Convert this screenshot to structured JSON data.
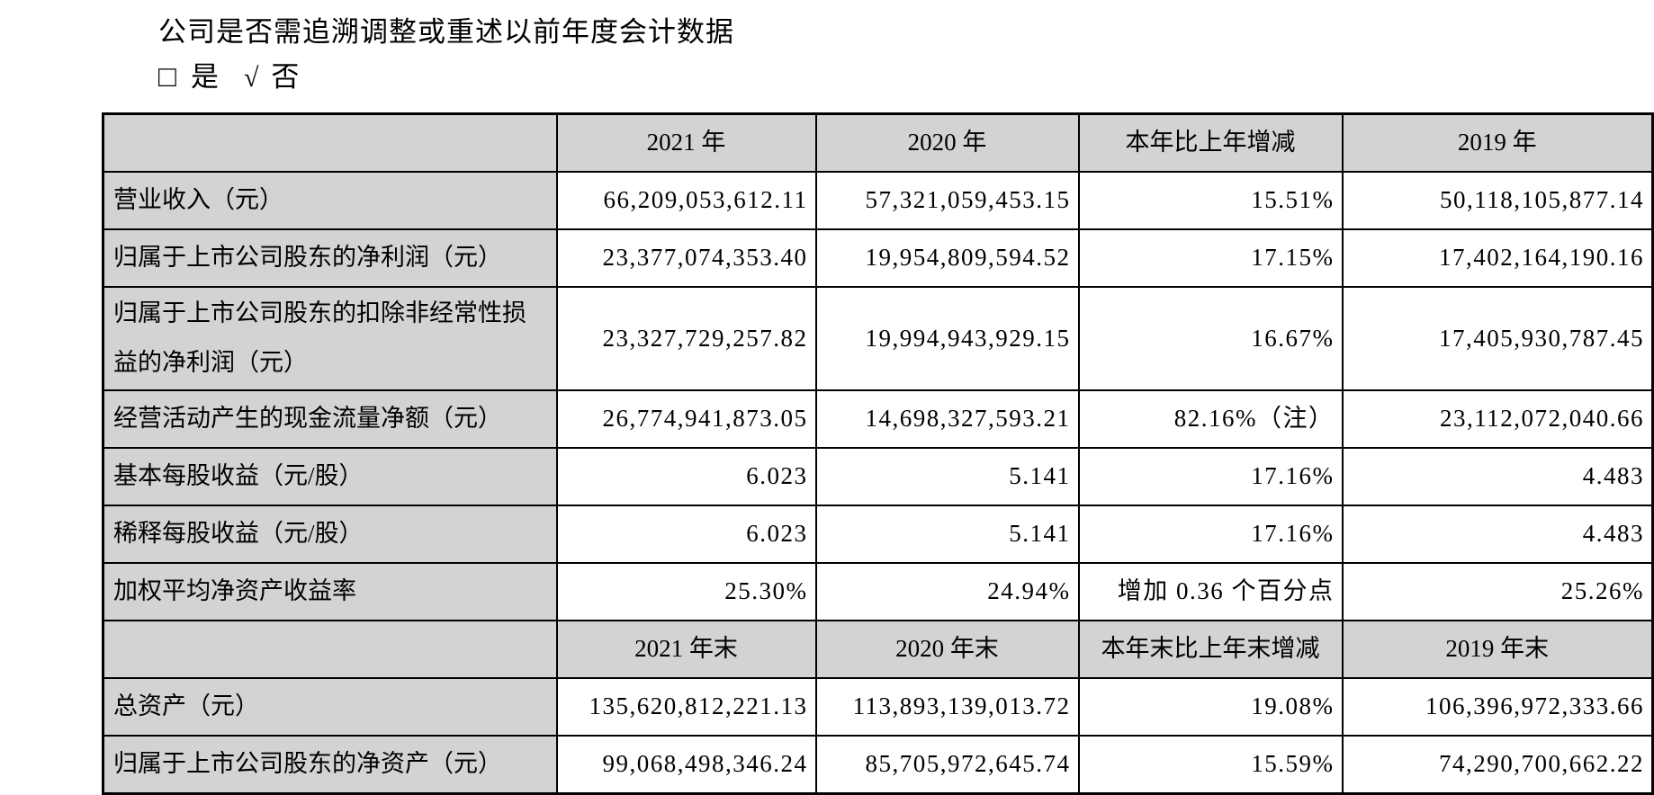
{
  "page": {
    "question": "公司是否需追溯调整或重述以前年度会计数据",
    "checkbox": {
      "unchecked_symbol": "□",
      "yes_label": "是",
      "check_symbol": "√",
      "no_label": "否"
    }
  },
  "colors": {
    "header_bg": "#d3d3d3",
    "border": "#000000",
    "text": "#000000",
    "page_bg": "#ffffff"
  },
  "table": {
    "rows": [
      {
        "type": "header",
        "cells": [
          "",
          "2021 年",
          "2020 年",
          "本年比上年增减",
          "2019 年"
        ]
      },
      {
        "type": "data",
        "cells": [
          "营业收入（元）",
          "66,209,053,612.11",
          "57,321,059,453.15",
          "15.51%",
          "50,118,105,877.14"
        ]
      },
      {
        "type": "data",
        "cells": [
          "归属于上市公司股东的净利润（元）",
          "23,377,074,353.40",
          "19,954,809,594.52",
          "17.15%",
          "17,402,164,190.16"
        ]
      },
      {
        "type": "data",
        "cells": [
          "归属于上市公司股东的扣除非经常性损益的净利润（元）",
          "23,327,729,257.82",
          "19,994,943,929.15",
          "16.67%",
          "17,405,930,787.45"
        ]
      },
      {
        "type": "data",
        "cells": [
          "经营活动产生的现金流量净额（元）",
          "26,774,941,873.05",
          "14,698,327,593.21",
          "82.16%（注）",
          "23,112,072,040.66"
        ]
      },
      {
        "type": "data",
        "cells": [
          "基本每股收益（元/股）",
          "6.023",
          "5.141",
          "17.16%",
          "4.483"
        ]
      },
      {
        "type": "data",
        "cells": [
          "稀释每股收益（元/股）",
          "6.023",
          "5.141",
          "17.16%",
          "4.483"
        ]
      },
      {
        "type": "data",
        "cells": [
          "加权平均净资产收益率",
          "25.30%",
          "24.94%",
          "增加 0.36 个百分点",
          "25.26%"
        ]
      },
      {
        "type": "header",
        "cells": [
          "",
          "2021 年末",
          "2020 年末",
          "本年末比上年末增减",
          "2019 年末"
        ]
      },
      {
        "type": "data",
        "cells": [
          "总资产（元）",
          "135,620,812,221.13",
          "113,893,139,013.72",
          "19.08%",
          "106,396,972,333.66"
        ]
      },
      {
        "type": "data",
        "cells": [
          "归属于上市公司股东的净资产（元）",
          "99,068,498,346.24",
          "85,705,972,645.74",
          "15.59%",
          "74,290,700,662.22"
        ]
      }
    ]
  }
}
